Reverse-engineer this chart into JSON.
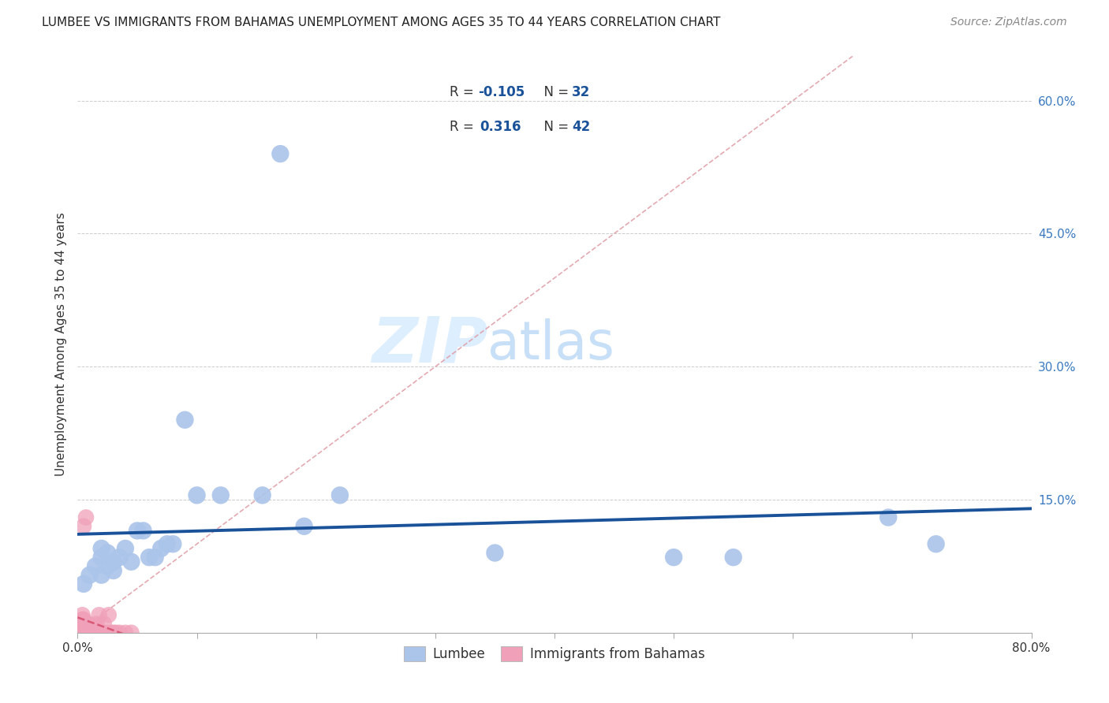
{
  "title": "LUMBEE VS IMMIGRANTS FROM BAHAMAS UNEMPLOYMENT AMONG AGES 35 TO 44 YEARS CORRELATION CHART",
  "source": "Source: ZipAtlas.com",
  "ylabel": "Unemployment Among Ages 35 to 44 years",
  "xlim": [
    0,
    0.8
  ],
  "ylim": [
    0,
    0.65
  ],
  "x_ticks": [
    0.0,
    0.1,
    0.2,
    0.3,
    0.4,
    0.5,
    0.6,
    0.7,
    0.8
  ],
  "y_ticks": [
    0.0,
    0.15,
    0.3,
    0.45,
    0.6
  ],
  "lumbee_color": "#aac4ea",
  "lumbee_edge": "#aac4ea",
  "bahamas_color": "#f0a0b8",
  "bahamas_edge": "#f0a0b8",
  "trend_lumbee_color": "#1a5299",
  "trend_bahamas_color": "#d04060",
  "diagonal_color": "#e0a0a8",
  "legend_R_lumbee": "-0.105",
  "legend_N_lumbee": "32",
  "legend_R_bahamas": "0.316",
  "legend_N_bahamas": "42",
  "R_color": "#1a5299",
  "lumbee_x": [
    0.005,
    0.01,
    0.015,
    0.02,
    0.02,
    0.02,
    0.025,
    0.025,
    0.03,
    0.03,
    0.035,
    0.04,
    0.045,
    0.05,
    0.055,
    0.06,
    0.065,
    0.07,
    0.075,
    0.08,
    0.09,
    0.1,
    0.12,
    0.155,
    0.17,
    0.19,
    0.22,
    0.35,
    0.5,
    0.55,
    0.68,
    0.72
  ],
  "lumbee_y": [
    0.055,
    0.065,
    0.075,
    0.065,
    0.085,
    0.095,
    0.075,
    0.09,
    0.07,
    0.08,
    0.085,
    0.095,
    0.08,
    0.115,
    0.115,
    0.085,
    0.085,
    0.095,
    0.1,
    0.1,
    0.24,
    0.155,
    0.155,
    0.155,
    0.54,
    0.12,
    0.155,
    0.09,
    0.085,
    0.085,
    0.13,
    0.1
  ],
  "bahamas_x": [
    0.003,
    0.003,
    0.003,
    0.004,
    0.004,
    0.004,
    0.004,
    0.004,
    0.005,
    0.005,
    0.005,
    0.005,
    0.005,
    0.006,
    0.006,
    0.006,
    0.007,
    0.007,
    0.007,
    0.008,
    0.008,
    0.009,
    0.009,
    0.01,
    0.01,
    0.012,
    0.013,
    0.015,
    0.015,
    0.016,
    0.017,
    0.018,
    0.02,
    0.022,
    0.024,
    0.026,
    0.028,
    0.03,
    0.032,
    0.035,
    0.04,
    0.045
  ],
  "bahamas_y": [
    0.0,
    0.005,
    0.01,
    0.0,
    0.005,
    0.01,
    0.015,
    0.02,
    0.0,
    0.005,
    0.01,
    0.015,
    0.12,
    0.0,
    0.005,
    0.01,
    0.0,
    0.005,
    0.13,
    0.0,
    0.005,
    0.0,
    0.01,
    0.0,
    0.005,
    0.0,
    0.005,
    0.0,
    0.005,
    0.01,
    0.0,
    0.02,
    0.0,
    0.01,
    0.0,
    0.02,
    0.0,
    0.0,
    0.0,
    0.0,
    0.0,
    0.0
  ],
  "watermark_zip": "ZIP",
  "watermark_atlas": "atlas",
  "watermark_color_zip": "#ddeeff",
  "watermark_color_atlas": "#c8dff8",
  "background_color": "#ffffff",
  "grid_color": "#cccccc",
  "title_fontsize": 11,
  "source_fontsize": 10,
  "tick_fontsize": 11,
  "ylabel_fontsize": 11
}
